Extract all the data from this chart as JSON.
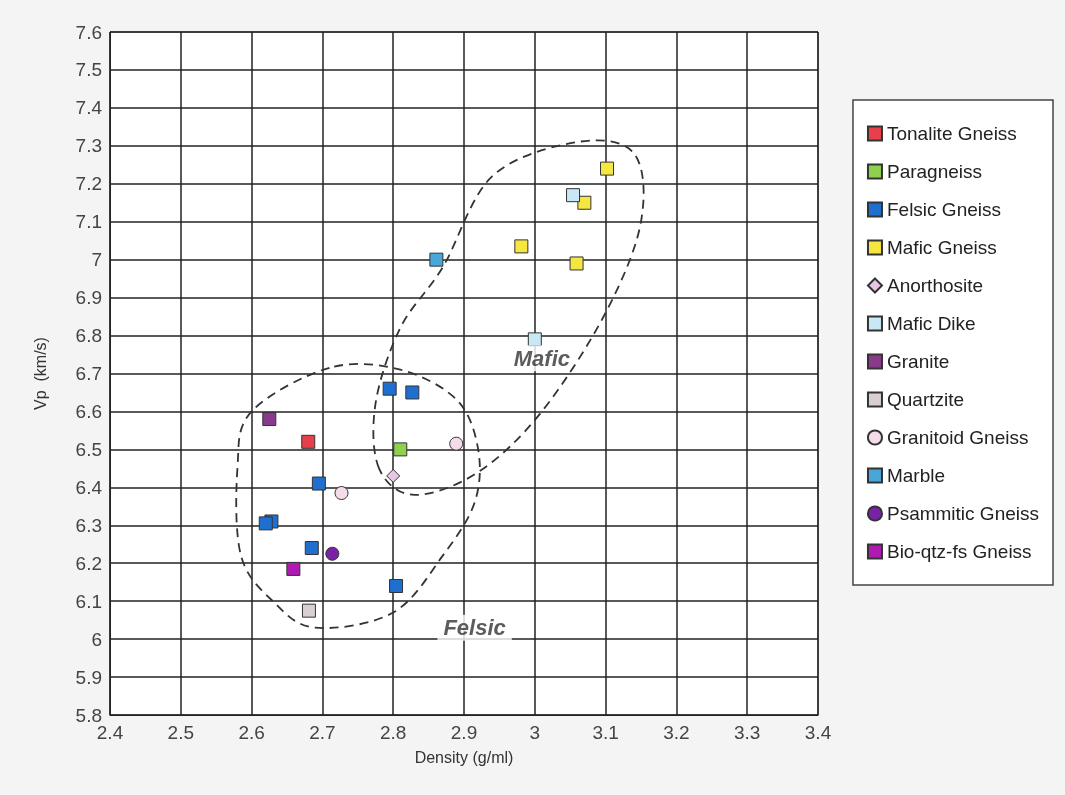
{
  "chart_data": {
    "type": "scatter",
    "xlabel": "Density (g/ml)",
    "ylabel": "Vp  (km/s)",
    "xlim": [
      2.4,
      3.4
    ],
    "xticks": [
      2.4,
      2.5,
      2.6,
      2.7,
      2.8,
      2.9,
      3,
      3.1,
      3.2,
      3.3,
      3.4
    ],
    "ylim": [
      5.8,
      7.6
    ],
    "yticks": [
      5.8,
      5.9,
      6,
      6.1,
      6.2,
      6.3,
      6.4,
      6.5,
      6.6,
      6.7,
      6.8,
      6.9,
      7,
      7.1,
      7.2,
      7.3,
      7.4,
      7.5,
      7.6
    ],
    "grid": true,
    "legend": "right",
    "marker": "square",
    "annotations": [
      "Mafic",
      "Felsic"
    ],
    "series": [
      {
        "name": "Tonalite Gneiss",
        "color": "#e8404a",
        "x": [
          2.68
        ],
        "values": [
          6.52
        ]
      },
      {
        "name": "Paragneiss",
        "color": "#8fd14f",
        "x": [
          2.81
        ],
        "values": [
          6.5
        ]
      },
      {
        "name": "Felsic Gneiss",
        "color": "#1f6fd0",
        "x": [
          2.795,
          2.827,
          2.695,
          2.628,
          2.62,
          2.685,
          2.804
        ],
        "values": [
          6.66,
          6.65,
          6.41,
          6.31,
          6.305,
          6.24,
          6.14
        ]
      },
      {
        "name": "Mafic Gneiss",
        "color": "#f5e642",
        "x": [
          3.102,
          3.07,
          2.981,
          3.059
        ],
        "values": [
          7.24,
          7.15,
          7.035,
          6.99
        ]
      },
      {
        "name": "Anorthosite",
        "color": "#e8c6e6",
        "marker": "diamond",
        "x": [
          2.8
        ],
        "values": [
          6.43
        ]
      },
      {
        "name": "Mafic Dike",
        "color": "#c8e8f5",
        "x": [
          3.054,
          3.0
        ],
        "values": [
          7.17,
          6.79
        ]
      },
      {
        "name": "Granite",
        "color": "#8a3a8a",
        "x": [
          2.625
        ],
        "values": [
          6.58
        ]
      },
      {
        "name": "Quartzite",
        "color": "#d8d0d0",
        "x": [
          2.681
        ],
        "values": [
          6.075
        ]
      },
      {
        "name": "Granitoid Gneiss",
        "color": "#f5dcea",
        "marker": "circle",
        "x": [
          2.889,
          2.727
        ],
        "values": [
          6.515,
          6.385
        ]
      },
      {
        "name": "Marble",
        "color": "#4aa6d8",
        "x": [
          2.861
        ],
        "values": [
          7.0
        ]
      },
      {
        "name": "Psammitic Gneiss",
        "color": "#7a22a6",
        "marker": "circle",
        "x": [
          2.714
        ],
        "values": [
          6.225
        ]
      },
      {
        "name": "Bio-qtz-fs Gneiss",
        "color": "#b01ab0",
        "x": [
          2.659
        ],
        "values": [
          6.185
        ]
      }
    ]
  }
}
